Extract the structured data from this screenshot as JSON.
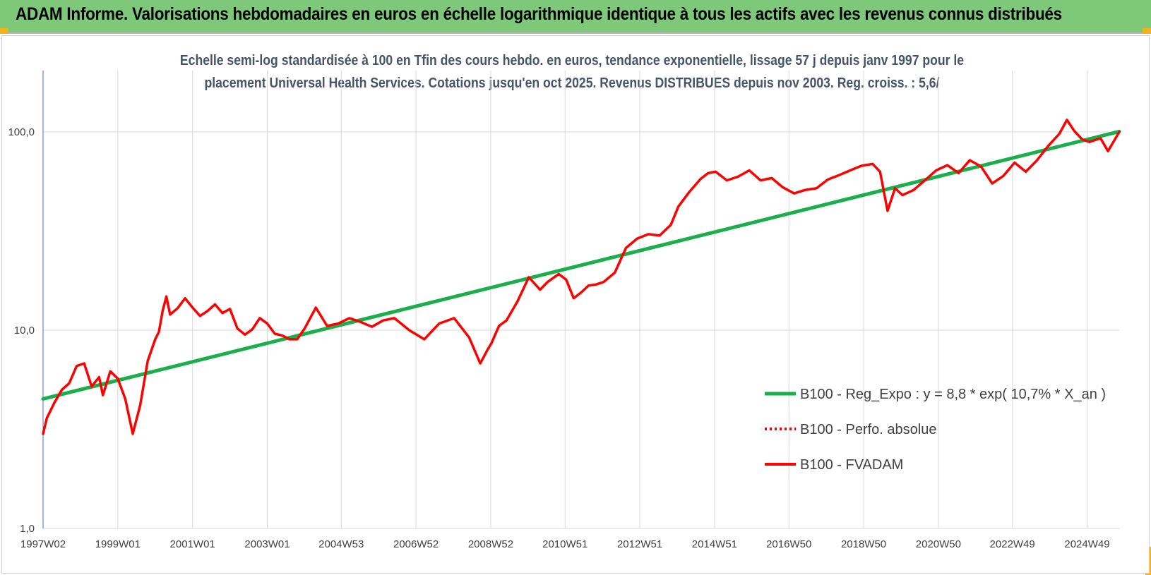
{
  "header": {
    "title": "ADAM Informe. Valorisations hebdomadaires en euros en échelle logarithmique identique à tous les actifs avec les revenus connus distribués"
  },
  "chart_data": {
    "type": "line",
    "title": "Echelle semi-log standardisée à 100 en Tfin des cours hebdo. en euros, tendance exponentielle, lissage 57 j depuis janv 1997 pour le placement Universal Health Services.  Cotations jusqu'en oct 2025. Revenus DISTRIBUES depuis nov 2003. Reg. croiss. : 5,6/",
    "title_lines": [
      "Echelle semi-log standardisée à 100 en Tfin des cours hebdo. en euros, tendance exponentielle, lissage 57 j depuis janv 1997 pour le",
      "placement Universal Health Services.  Cotations jusqu'en oct 2025. Revenus DISTRIBUES depuis nov 2003. Reg. croiss. : 5,6/"
    ],
    "y_scale": "log",
    "ylim": [
      1,
      180
    ],
    "xlim": [
      1997.0,
      2025.8
    ],
    "y_ticks": [
      {
        "value": 1,
        "label": "1,0"
      },
      {
        "value": 10,
        "label": "10,0"
      },
      {
        "value": 100,
        "label": "100,0"
      }
    ],
    "x_ticks": [
      {
        "value": 1997.0,
        "label": "1997W02"
      },
      {
        "value": 1999.0,
        "label": "1999W01"
      },
      {
        "value": 2001.0,
        "label": "2001W01"
      },
      {
        "value": 2003.0,
        "label": "2003W01"
      },
      {
        "value": 2004.98,
        "label": "2004W53"
      },
      {
        "value": 2006.98,
        "label": "2006W52"
      },
      {
        "value": 2008.98,
        "label": "2008W52"
      },
      {
        "value": 2010.97,
        "label": "2010W51"
      },
      {
        "value": 2012.97,
        "label": "2012W51"
      },
      {
        "value": 2014.97,
        "label": "2014W51"
      },
      {
        "value": 2016.96,
        "label": "2016W50"
      },
      {
        "value": 2018.96,
        "label": "2018W50"
      },
      {
        "value": 2020.96,
        "label": "2020W50"
      },
      {
        "value": 2022.94,
        "label": "2022W49"
      },
      {
        "value": 2024.94,
        "label": "2024W49"
      }
    ],
    "grid": true,
    "legend_position": "right",
    "series": [
      {
        "name": "B100 - Reg_Expo : y = 8,8 * exp( 10,7% *  X_an )",
        "color": "#1aaf4b",
        "style": "solid",
        "x": [
          1997.0,
          2025.8
        ],
        "values": [
          4.5,
          100.5
        ]
      },
      {
        "name": "B100 - Perfo. absolue",
        "color": "#ff0000",
        "style": "dotted",
        "x": [],
        "values": []
      },
      {
        "name": "B100 - FVADAM",
        "color": "#ff0000",
        "style": "solid",
        "x": [
          1997.0,
          1997.1,
          1997.3,
          1997.5,
          1997.7,
          1997.9,
          1998.1,
          1998.3,
          1998.5,
          1998.6,
          1998.8,
          1999.0,
          1999.2,
          1999.4,
          1999.6,
          1999.8,
          2000.0,
          2000.1,
          2000.2,
          2000.3,
          2000.4,
          2000.6,
          2000.8,
          2001.0,
          2001.2,
          2001.4,
          2001.6,
          2001.8,
          2002.0,
          2002.2,
          2002.4,
          2002.6,
          2002.8,
          2003.0,
          2003.2,
          2003.4,
          2003.6,
          2003.8,
          2004.0,
          2004.3,
          2004.6,
          2004.9,
          2005.2,
          2005.5,
          2005.8,
          2006.1,
          2006.4,
          2006.8,
          2007.2,
          2007.6,
          2008.0,
          2008.4,
          2008.7,
          2008.9,
          2009.0,
          2009.2,
          2009.4,
          2009.7,
          2010.0,
          2010.3,
          2010.5,
          2010.8,
          2011.0,
          2011.2,
          2011.4,
          2011.6,
          2011.8,
          2012.0,
          2012.3,
          2012.6,
          2012.9,
          2013.2,
          2013.5,
          2013.8,
          2014.0,
          2014.3,
          2014.6,
          2014.8,
          2015.0,
          2015.3,
          2015.6,
          2015.9,
          2016.2,
          2016.5,
          2016.8,
          2017.1,
          2017.4,
          2017.7,
          2018.0,
          2018.3,
          2018.6,
          2018.9,
          2019.2,
          2019.4,
          2019.6,
          2019.8,
          2020.0,
          2020.3,
          2020.6,
          2020.9,
          2021.2,
          2021.5,
          2021.8,
          2022.1,
          2022.4,
          2022.7,
          2023.0,
          2023.3,
          2023.6,
          2023.9,
          2024.2,
          2024.4,
          2024.6,
          2024.8,
          2025.0,
          2025.3,
          2025.5,
          2025.8
        ],
        "values": [
          3.0,
          3.6,
          4.3,
          5.0,
          5.4,
          6.6,
          6.8,
          5.2,
          5.8,
          4.7,
          6.2,
          5.7,
          4.5,
          3.0,
          4.2,
          7.0,
          9.0,
          9.8,
          12.5,
          14.8,
          12.0,
          12.9,
          14.5,
          13.0,
          11.8,
          12.5,
          13.5,
          12.2,
          12.8,
          10.2,
          9.5,
          10.1,
          11.5,
          10.8,
          9.6,
          9.4,
          9.0,
          9.0,
          10.2,
          13.0,
          10.5,
          10.8,
          11.5,
          11.0,
          10.4,
          11.2,
          11.5,
          10.0,
          9.0,
          10.8,
          11.5,
          9.2,
          6.8,
          8.0,
          8.6,
          10.5,
          11.2,
          14.0,
          18.5,
          16.0,
          17.5,
          19.2,
          18.0,
          14.5,
          15.5,
          16.8,
          17.0,
          17.5,
          19.5,
          26.0,
          29.0,
          30.5,
          30.0,
          34.0,
          42.0,
          50.0,
          58.0,
          62.0,
          63.0,
          57.0,
          59.5,
          64.0,
          57.0,
          58.5,
          52.5,
          49.0,
          51.0,
          52.0,
          57.5,
          60.5,
          64.0,
          67.5,
          69.0,
          63.0,
          40.0,
          52.0,
          48.0,
          51.0,
          57.0,
          64.0,
          68.0,
          62.0,
          72.0,
          67.0,
          55.0,
          60.0,
          70.0,
          63.0,
          72.0,
          85.0,
          98.0,
          115.0,
          101.0,
          92.0,
          89.0,
          93.0,
          80.0,
          100.0
        ]
      }
    ]
  }
}
